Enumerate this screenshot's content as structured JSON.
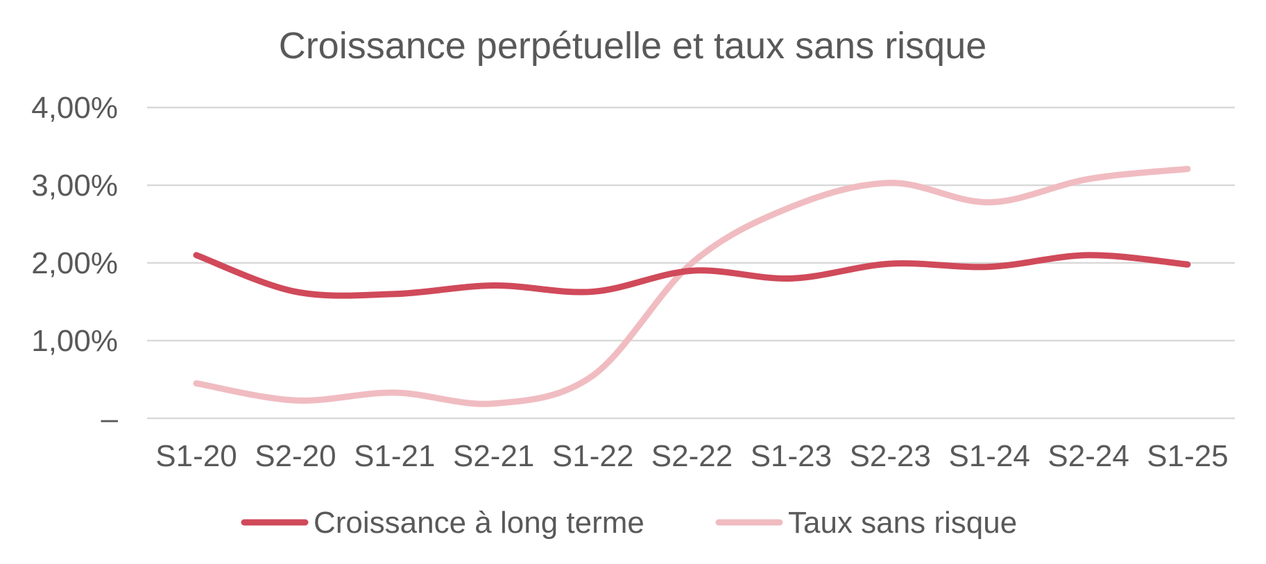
{
  "chart_data": {
    "type": "line",
    "title": "Croissance perpétuelle et taux sans risque",
    "xlabel": "",
    "ylabel": "",
    "categories": [
      "S1-20",
      "S2-20",
      "S1-21",
      "S2-21",
      "S1-22",
      "S2-22",
      "S1-23",
      "S2-23",
      "S1-24",
      "S2-24",
      "S1-25"
    ],
    "y_ticks": [
      {
        "value": 0,
        "label": "–"
      },
      {
        "value": 0.01,
        "label": "1,00%"
      },
      {
        "value": 0.02,
        "label": "2,00%"
      },
      {
        "value": 0.03,
        "label": "3,00%"
      },
      {
        "value": 0.04,
        "label": "4,00%"
      }
    ],
    "ylim": [
      0,
      0.04
    ],
    "grid": true,
    "smooth": true,
    "legend_position": "bottom",
    "series": [
      {
        "name": "Croissance à long terme",
        "color": "#d04a5a",
        "values": [
          0.021,
          0.0163,
          0.016,
          0.0171,
          0.0163,
          0.019,
          0.018,
          0.0199,
          0.0195,
          0.021,
          0.0198
        ]
      },
      {
        "name": "Taux sans risque",
        "color": "#f0bcc1",
        "values": [
          0.0045,
          0.0023,
          0.0033,
          0.0019,
          0.0055,
          0.02,
          0.0272,
          0.0303,
          0.0278,
          0.0308,
          0.0321
        ]
      }
    ]
  }
}
